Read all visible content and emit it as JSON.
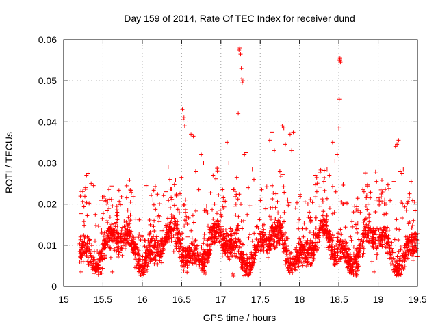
{
  "chart_data": {
    "type": "scatter",
    "title": "Day 159 of 2014, Rate Of TEC Index for receiver dund",
    "xlabel": "GPS time / hours",
    "ylabel": "ROTI / TECUs",
    "xlim": [
      15,
      19.5
    ],
    "ylim": [
      0,
      0.06
    ],
    "xticks": [
      15,
      15.5,
      16,
      16.5,
      17,
      17.5,
      18,
      18.5,
      19,
      19.5
    ],
    "xtick_labels": [
      "15",
      "15.5",
      "16",
      "16.5",
      "17",
      "17.5",
      "18",
      "18.5",
      "19",
      "19.5"
    ],
    "yticks": [
      0,
      0.01,
      0.02,
      0.03,
      0.04,
      0.05,
      0.06
    ],
    "ytick_labels": [
      "0",
      "0.01",
      "0.02",
      "0.03",
      "0.04",
      "0.05",
      "0.06"
    ],
    "grid": true,
    "marker": "+",
    "marker_color": "#ff0000",
    "series": [
      {
        "name": "ROTI",
        "points": [
          [
            15.22,
            0.0035
          ],
          [
            15.25,
            0.006
          ],
          [
            15.27,
            0.009
          ],
          [
            15.3,
            0.012
          ],
          [
            15.28,
            0.024
          ],
          [
            15.29,
            0.027
          ],
          [
            15.31,
            0.0275
          ],
          [
            15.35,
            0.025
          ],
          [
            15.38,
            0.0245
          ],
          [
            15.4,
            0.011
          ],
          [
            15.45,
            0.008
          ],
          [
            15.5,
            0.0095
          ],
          [
            15.52,
            0.013
          ],
          [
            15.55,
            0.02
          ],
          [
            15.6,
            0.007
          ],
          [
            15.62,
            0.0035
          ],
          [
            15.65,
            0.0115
          ],
          [
            15.7,
            0.009
          ],
          [
            15.75,
            0.012
          ],
          [
            15.8,
            0.0215
          ],
          [
            15.82,
            0.015
          ],
          [
            15.85,
            0.0205
          ],
          [
            15.9,
            0.01
          ],
          [
            15.95,
            0.008
          ],
          [
            16.0,
            0.012
          ],
          [
            16.05,
            0.0245
          ],
          [
            16.1,
            0.011
          ],
          [
            16.15,
            0.016
          ],
          [
            16.2,
            0.009
          ],
          [
            16.25,
            0.0135
          ],
          [
            16.3,
            0.012
          ],
          [
            16.33,
            0.029
          ],
          [
            16.35,
            0.026
          ],
          [
            16.38,
            0.03
          ],
          [
            16.4,
            0.0085
          ],
          [
            16.45,
            0.015
          ],
          [
            16.48,
            0.0225
          ],
          [
            16.5,
            0.0265
          ],
          [
            16.51,
            0.043
          ],
          [
            16.52,
            0.0405
          ],
          [
            16.53,
            0.041
          ],
          [
            16.54,
            0.039
          ],
          [
            16.55,
            0.021
          ],
          [
            16.58,
            0.012
          ],
          [
            16.62,
            0.037
          ],
          [
            16.65,
            0.0365
          ],
          [
            16.68,
            0.028
          ],
          [
            16.72,
            0.0235
          ],
          [
            16.75,
            0.032
          ],
          [
            16.78,
            0.03
          ],
          [
            16.8,
            0.0185
          ],
          [
            16.85,
            0.0075
          ],
          [
            16.9,
            0.027
          ],
          [
            16.92,
            0.02
          ],
          [
            16.95,
            0.0115
          ],
          [
            17.0,
            0.0175
          ],
          [
            17.03,
            0.019
          ],
          [
            17.05,
            0.0085
          ],
          [
            17.08,
            0.035
          ],
          [
            17.1,
            0.03
          ],
          [
            17.12,
            0.0125
          ],
          [
            17.15,
            0.003
          ],
          [
            17.16,
            0.0025
          ],
          [
            17.18,
            0.0195
          ],
          [
            17.2,
            0.0265
          ],
          [
            17.22,
            0.042
          ],
          [
            17.23,
            0.0575
          ],
          [
            17.24,
            0.058
          ],
          [
            17.25,
            0.0565
          ],
          [
            17.26,
            0.053
          ],
          [
            17.265,
            0.0505
          ],
          [
            17.27,
            0.0495
          ],
          [
            17.28,
            0.05
          ],
          [
            17.3,
            0.032
          ],
          [
            17.32,
            0.0325
          ],
          [
            17.35,
            0.024
          ],
          [
            17.4,
            0.0285
          ],
          [
            17.42,
            0.026
          ],
          [
            17.45,
            0.0145
          ],
          [
            17.5,
            0.011
          ],
          [
            17.55,
            0.015
          ],
          [
            17.6,
            0.007
          ],
          [
            17.62,
            0.0355
          ],
          [
            17.65,
            0.0375
          ],
          [
            17.68,
            0.033
          ],
          [
            17.7,
            0.0225
          ],
          [
            17.75,
            0.028
          ],
          [
            17.78,
            0.039
          ],
          [
            17.8,
            0.0385
          ],
          [
            17.82,
            0.0345
          ],
          [
            17.85,
            0.021
          ],
          [
            17.88,
            0.037
          ],
          [
            17.9,
            0.033
          ],
          [
            17.92,
            0.0375
          ],
          [
            17.95,
            0.019
          ],
          [
            18.0,
            0.009
          ],
          [
            18.05,
            0.012
          ],
          [
            18.1,
            0.0105
          ],
          [
            18.15,
            0.016
          ],
          [
            18.2,
            0.027
          ],
          [
            18.22,
            0.023
          ],
          [
            18.25,
            0.011
          ],
          [
            18.3,
            0.0145
          ],
          [
            18.35,
            0.0285
          ],
          [
            18.38,
            0.027
          ],
          [
            18.42,
            0.035
          ],
          [
            18.45,
            0.0305
          ],
          [
            18.48,
            0.032
          ],
          [
            18.5,
            0.0385
          ],
          [
            18.505,
            0.0455
          ],
          [
            18.51,
            0.055
          ],
          [
            18.515,
            0.0555
          ],
          [
            18.52,
            0.0545
          ],
          [
            18.55,
            0.02
          ],
          [
            18.6,
            0.0085
          ],
          [
            18.65,
            0.012
          ],
          [
            18.7,
            0.0195
          ],
          [
            18.75,
            0.0075
          ],
          [
            18.8,
            0.0105
          ],
          [
            18.85,
            0.015
          ],
          [
            18.9,
            0.0215
          ],
          [
            18.92,
            0.006
          ],
          [
            18.95,
            0.0035
          ],
          [
            18.98,
            0.0255
          ],
          [
            19.0,
            0.0215
          ],
          [
            19.05,
            0.0125
          ],
          [
            19.1,
            0.02
          ],
          [
            19.15,
            0.0085
          ],
          [
            19.2,
            0.0255
          ],
          [
            19.22,
            0.034
          ],
          [
            19.24,
            0.0345
          ],
          [
            19.26,
            0.0355
          ],
          [
            19.28,
            0.028
          ],
          [
            19.3,
            0.0275
          ],
          [
            19.32,
            0.0285
          ],
          [
            19.35,
            0.012
          ],
          [
            19.4,
            0.0225
          ],
          [
            19.42,
            0.0255
          ],
          [
            19.45,
            0.016
          ],
          [
            19.48,
            0.012
          ],
          [
            19.5,
            0.0105
          ]
        ]
      }
    ],
    "background_points": {
      "x_start": 15.2,
      "x_end": 19.5,
      "count": 2600,
      "base_level": 0.0095,
      "spread": 0.0055,
      "seed": 159
    }
  }
}
